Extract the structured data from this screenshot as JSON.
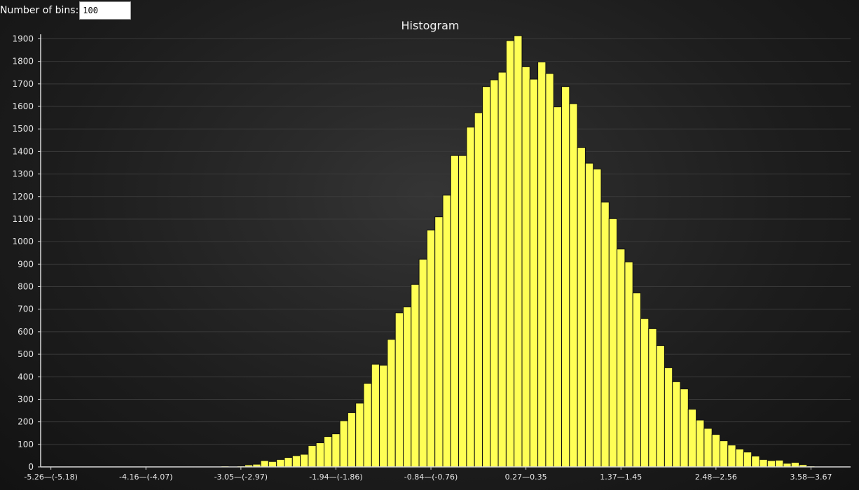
{
  "controls": {
    "bins_label": "Number of bins:",
    "bins_value": "100"
  },
  "colors": {
    "bar_fill": "#ffff55",
    "bar_stroke": "#111111",
    "grid": "#3a3a3a",
    "axis": "#d8d8d8",
    "text": "#e8e8e8"
  },
  "chart_data": {
    "type": "bar",
    "title": "Histogram",
    "grid": true,
    "legend": "none",
    "ylim": [
      0,
      1920
    ],
    "yticks": [
      0,
      100,
      200,
      300,
      400,
      500,
      600,
      700,
      800,
      900,
      1000,
      1100,
      1200,
      1300,
      1400,
      1500,
      1600,
      1700,
      1800,
      1900
    ],
    "x_tick_labels": [
      {
        "bin": 0,
        "label": "-5.26—(-5.18)"
      },
      {
        "bin": 12,
        "label": "-4.16—(-4.07)"
      },
      {
        "bin": 24,
        "label": "-3.05—(-2.97)"
      },
      {
        "bin": 36,
        "label": "-1.94—(-1.86)"
      },
      {
        "bin": 48,
        "label": "-0.84—(-0.76)"
      },
      {
        "bin": 60,
        "label": "0.27—0.35"
      },
      {
        "bin": 72,
        "label": "1.37—1.45"
      },
      {
        "bin": 84,
        "label": "2.48—2.56"
      },
      {
        "bin": 96,
        "label": "3.58—3.67"
      }
    ],
    "bins_count": 100,
    "values": [
      1,
      0,
      0,
      0,
      0,
      0,
      0,
      0,
      0,
      0,
      0,
      0,
      0,
      0,
      0,
      0,
      0,
      0,
      0,
      0,
      0,
      0,
      4,
      2,
      4,
      9,
      12,
      28,
      24,
      33,
      42,
      50,
      56,
      95,
      107,
      135,
      147,
      205,
      241,
      283,
      371,
      456,
      451,
      566,
      684,
      710,
      810,
      922,
      1051,
      1110,
      1206,
      1382,
      1382,
      1508,
      1572,
      1688,
      1718,
      1752,
      1892,
      1914,
      1776,
      1721,
      1797,
      1746,
      1598,
      1688,
      1612,
      1418,
      1348,
      1322,
      1175,
      1102,
      967,
      910,
      772,
      658,
      614,
      539,
      440,
      378,
      346,
      256,
      208,
      171,
      144,
      116,
      97,
      79,
      66,
      48,
      33,
      28,
      30,
      16,
      20,
      10,
      4,
      2,
      1,
      1
    ]
  }
}
